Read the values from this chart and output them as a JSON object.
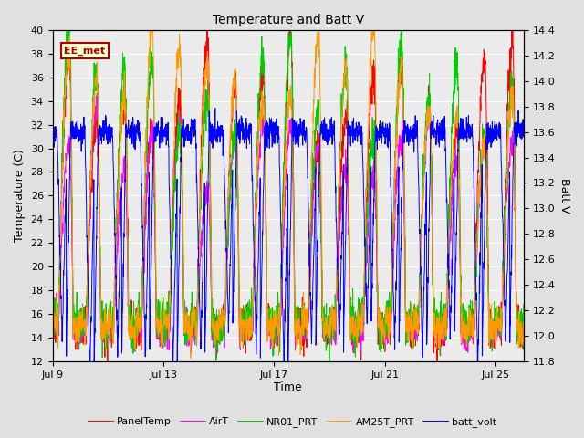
{
  "title": "Temperature and Batt V",
  "xlabel": "Time",
  "ylabel_left": "Temperature (C)",
  "ylabel_right": "Batt V",
  "xlim_days": [
    0,
    17
  ],
  "ylim_left": [
    12,
    40
  ],
  "ylim_right": [
    11.8,
    14.4
  ],
  "x_ticks_labels": [
    "Jul 9",
    "Jul 13",
    "Jul 17",
    "Jul 21",
    "Jul 25"
  ],
  "x_ticks_pos": [
    0,
    4,
    8,
    12,
    16
  ],
  "y_ticks_left": [
    12,
    14,
    16,
    18,
    20,
    22,
    24,
    26,
    28,
    30,
    32,
    34,
    36,
    38,
    40
  ],
  "y_ticks_right": [
    11.8,
    12.0,
    12.2,
    12.4,
    12.6,
    12.8,
    13.0,
    13.2,
    13.4,
    13.6,
    13.8,
    14.0,
    14.2,
    14.4
  ],
  "annotation_text": "EE_met",
  "bg_color": "#e0e0e0",
  "plot_bg_color": "#ebebeb",
  "grid_color": "#ffffff",
  "line_colors": {
    "PanelTemp": "#ff0000",
    "AirT": "#ff00ff",
    "NR01_PRT": "#00cc00",
    "AM25T_PRT": "#ff9900",
    "batt_volt": "#0000ff"
  },
  "num_days": 17,
  "samples_per_day": 144
}
